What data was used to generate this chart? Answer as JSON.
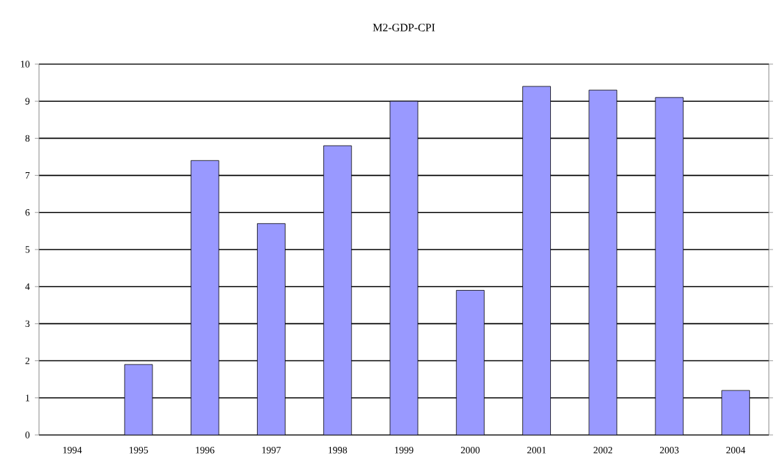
{
  "chart_data": {
    "type": "bar",
    "title": "M2-GDP-CPI",
    "categories": [
      "1994",
      "1995",
      "1996",
      "1997",
      "1998",
      "1999",
      "2000",
      "2001",
      "2002",
      "2003",
      "2004"
    ],
    "values": [
      null,
      1.9,
      7.4,
      5.7,
      7.8,
      9.0,
      3.9,
      9.4,
      9.3,
      9.1,
      1.2
    ],
    "color": "#9999ff",
    "ylim": [
      0,
      10
    ],
    "yticks": [
      0,
      1,
      2,
      3,
      4,
      5,
      6,
      7,
      8,
      9,
      10
    ],
    "grid": "y"
  }
}
